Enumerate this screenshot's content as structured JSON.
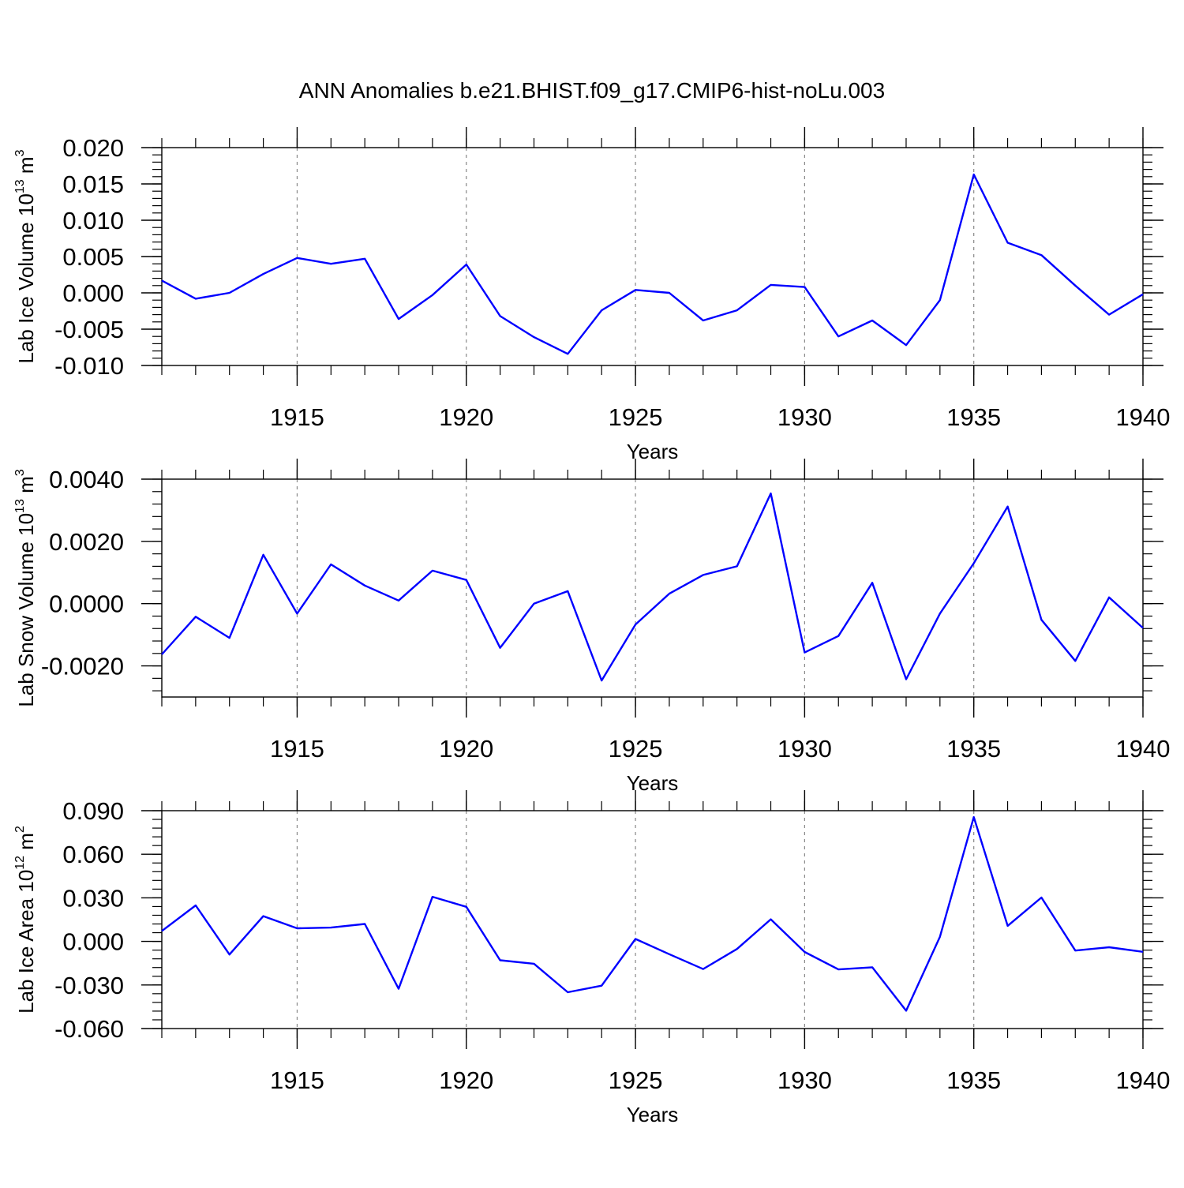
{
  "title": "ANN Anomalies b.e21.BHIST.f09_g17.CMIP6-hist-noLu.003",
  "colors": {
    "line": "#0000ff",
    "axis": "#000000",
    "grid": "#888888"
  },
  "chart_data": [
    {
      "type": "line",
      "ylabel": {
        "main": "Lab Ice Volume 10",
        "sup": "13",
        "unit": " m",
        "unit_sup": "3"
      },
      "xlabel": "Years",
      "xlim": [
        1911,
        1940
      ],
      "ylim": [
        -0.01,
        0.02
      ],
      "yticks": [
        -0.01,
        -0.005,
        0.0,
        0.005,
        0.01,
        0.015,
        0.02
      ],
      "ytick_labels": [
        "-0.010",
        "-0.005",
        "0.000",
        "0.005",
        "0.010",
        "0.015",
        "0.020"
      ],
      "xticks": [
        1915,
        1920,
        1925,
        1930,
        1935,
        1940
      ],
      "xtick_labels": [
        "1915",
        "1920",
        "1925",
        "1930",
        "1935",
        "1940"
      ],
      "grid": "x-dashed",
      "series": [
        {
          "x": [
            1911,
            1912,
            1913,
            1914,
            1915,
            1916,
            1917,
            1918,
            1919,
            1920,
            1921,
            1922,
            1923,
            1924,
            1925,
            1926,
            1927,
            1928,
            1929,
            1930,
            1931,
            1932,
            1933,
            1934,
            1935,
            1936,
            1937,
            1938,
            1939,
            1940
          ],
          "values": [
            0.0017,
            -0.0008,
            0.0,
            0.0026,
            0.0048,
            0.004,
            0.0047,
            -0.0036,
            -0.0003,
            0.0039,
            -0.0032,
            -0.0061,
            -0.0084,
            -0.0024,
            0.0004,
            0.0,
            -0.0038,
            -0.0024,
            0.0011,
            0.0008,
            -0.006,
            -0.0038,
            -0.0072,
            -0.001,
            0.0163,
            0.0069,
            0.0052,
            0.001,
            -0.003,
            -0.0002
          ]
        }
      ]
    },
    {
      "type": "line",
      "ylabel": {
        "main": "Lab Snow Volume 10",
        "sup": "13",
        "unit": " m",
        "unit_sup": "3"
      },
      "xlabel": "Years",
      "xlim": [
        1911,
        1940
      ],
      "ylim": [
        -0.003,
        0.004
      ],
      "yticks": [
        -0.002,
        0.0,
        0.002,
        0.004
      ],
      "ytick_labels": [
        "-0.0020",
        "0.0000",
        "0.0020",
        "0.0040"
      ],
      "xticks": [
        1915,
        1920,
        1925,
        1930,
        1935,
        1940
      ],
      "xtick_labels": [
        "1915",
        "1920",
        "1925",
        "1930",
        "1935",
        "1940"
      ],
      "grid": "x-dashed",
      "series": [
        {
          "x": [
            1911,
            1912,
            1913,
            1914,
            1915,
            1916,
            1917,
            1918,
            1919,
            1920,
            1921,
            1922,
            1923,
            1924,
            1925,
            1926,
            1927,
            1928,
            1929,
            1930,
            1931,
            1932,
            1933,
            1934,
            1935,
            1936,
            1937,
            1938,
            1939,
            1940
          ],
          "values": [
            -0.00163,
            -0.00042,
            -0.0011,
            0.00157,
            -0.00032,
            0.00126,
            0.00058,
            0.0001,
            0.00106,
            0.00076,
            -0.00142,
            0.0,
            0.0004,
            -0.00247,
            -0.00067,
            0.00032,
            0.00092,
            0.0012,
            0.00354,
            -0.00157,
            -0.00104,
            0.00067,
            -0.00243,
            -0.00032,
            0.0013,
            0.00312,
            -0.00052,
            -0.00184,
            0.0002,
            -0.00078
          ]
        }
      ]
    },
    {
      "type": "line",
      "ylabel": {
        "main": "Lab Ice Area 10",
        "sup": "12",
        "unit": " m",
        "unit_sup": "2"
      },
      "xlabel": "Years",
      "xlim": [
        1911,
        1940
      ],
      "ylim": [
        -0.06,
        0.09
      ],
      "yticks": [
        -0.06,
        -0.03,
        0.0,
        0.03,
        0.06,
        0.09
      ],
      "ytick_labels": [
        "-0.060",
        "-0.030",
        "0.000",
        "0.030",
        "0.060",
        "0.090"
      ],
      "xticks": [
        1915,
        1920,
        1925,
        1930,
        1935,
        1940
      ],
      "xtick_labels": [
        "1915",
        "1920",
        "1925",
        "1930",
        "1935",
        "1940"
      ],
      "grid": "x-dashed",
      "series": [
        {
          "x": [
            1911,
            1912,
            1913,
            1914,
            1915,
            1916,
            1917,
            1918,
            1919,
            1920,
            1921,
            1922,
            1923,
            1924,
            1925,
            1926,
            1927,
            1928,
            1929,
            1930,
            1931,
            1932,
            1933,
            1934,
            1935,
            1936,
            1937,
            1938,
            1939,
            1940
          ],
          "values": [
            0.0072,
            0.0248,
            -0.009,
            0.0174,
            0.009,
            0.0095,
            0.012,
            -0.0326,
            0.0307,
            0.0238,
            -0.013,
            -0.0154,
            -0.035,
            -0.0305,
            0.0017,
            -0.0088,
            -0.019,
            -0.0052,
            0.0152,
            -0.0073,
            -0.0193,
            -0.0178,
            -0.0477,
            0.0032,
            0.0856,
            0.0107,
            0.0302,
            -0.0063,
            -0.004,
            -0.0072
          ]
        }
      ]
    }
  ]
}
